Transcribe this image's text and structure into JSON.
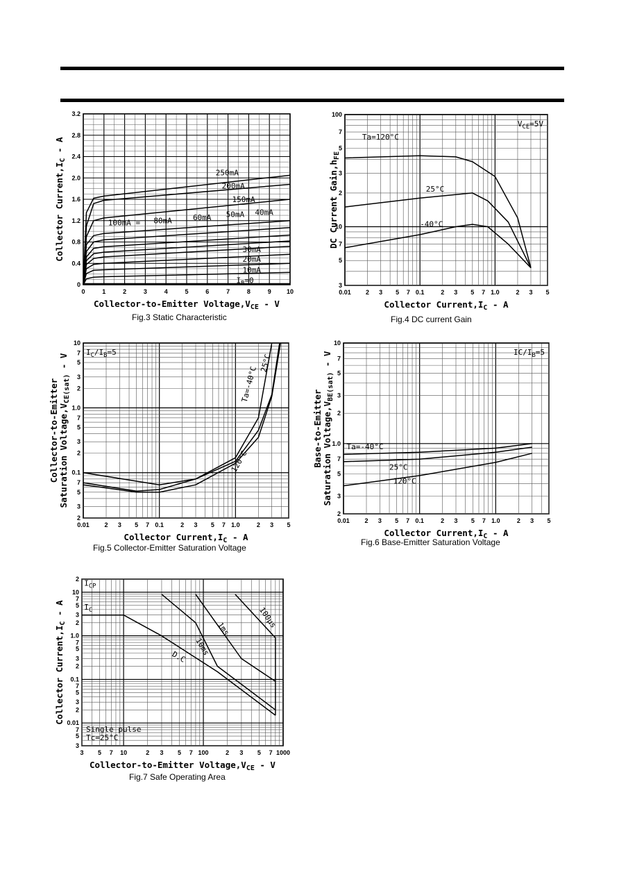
{
  "chart_data": [
    {
      "id": "fig3",
      "type": "line",
      "caption": "Fig.3 Static Characteristic",
      "xlabel": "Collector-to-Emitter Voltage,V",
      "xlabel_sub": "CE",
      "xlabel_tail": " - V",
      "ylabel": "Collector Current,I",
      "ylabel_sub": "C",
      "ylabel_tail": " - A",
      "xlim": [
        0,
        10
      ],
      "ylim": [
        0,
        3.2
      ],
      "xticks": [
        0,
        1,
        2,
        3,
        4,
        5,
        6,
        7,
        8,
        9,
        10
      ],
      "yticks": [
        0,
        0.4,
        0.8,
        1.2,
        1.6,
        2.0,
        2.4,
        2.8,
        3.2
      ],
      "ytick_labels": [
        "0",
        "0.4",
        "0.8",
        "1.2",
        "1.6",
        "2.0",
        "2.4",
        "2.8",
        "3.2"
      ],
      "grid": true,
      "series": [
        {
          "name": "250mA",
          "points": [
            [
              0,
              0
            ],
            [
              0.15,
              1.35
            ],
            [
              0.5,
              1.62
            ],
            [
              1,
              1.66
            ],
            [
              10,
              2.05
            ]
          ]
        },
        {
          "name": "200mA",
          "points": [
            [
              0,
              0
            ],
            [
              0.15,
              1.1
            ],
            [
              0.5,
              1.52
            ],
            [
              1,
              1.58
            ],
            [
              10,
              1.88
            ]
          ]
        },
        {
          "name": "150mA",
          "points": [
            [
              0,
              0
            ],
            [
              0.15,
              0.9
            ],
            [
              0.5,
              1.2
            ],
            [
              1,
              1.25
            ],
            [
              10,
              1.6
            ]
          ]
        },
        {
          "name": "100mA",
          "points": [
            [
              0,
              0
            ],
            [
              0.15,
              0.75
            ],
            [
              0.5,
              0.92
            ],
            [
              1,
              0.96
            ],
            [
              10,
              1.2
            ]
          ]
        },
        {
          "name": "80mA",
          "points": [
            [
              0,
              0
            ],
            [
              0.15,
              0.62
            ],
            [
              0.5,
              0.8
            ],
            [
              1,
              0.84
            ],
            [
              10,
              1.07
            ]
          ]
        },
        {
          "name": "60mA",
          "points": [
            [
              0,
              0
            ],
            [
              0.15,
              0.52
            ],
            [
              0.5,
              0.68
            ],
            [
              1,
              0.71
            ],
            [
              10,
              0.93
            ]
          ]
        },
        {
          "name": "50mA",
          "points": [
            [
              0,
              0
            ],
            [
              0.15,
              0.45
            ],
            [
              0.5,
              0.58
            ],
            [
              1,
              0.61
            ],
            [
              10,
              0.82
            ]
          ]
        },
        {
          "name": "40mA",
          "points": [
            [
              0,
              0
            ],
            [
              0.15,
              0.38
            ],
            [
              0.5,
              0.49
            ],
            [
              1,
              0.52
            ],
            [
              10,
              0.72
            ]
          ]
        },
        {
          "name": "30mA",
          "points": [
            [
              0,
              0
            ],
            [
              0.15,
              0.3
            ],
            [
              0.5,
              0.38
            ],
            [
              1,
              0.4
            ],
            [
              10,
              0.57
            ]
          ]
        },
        {
          "name": "20mA",
          "points": [
            [
              0,
              0
            ],
            [
              0.15,
              0.21
            ],
            [
              0.5,
              0.27
            ],
            [
              1,
              0.28
            ],
            [
              10,
              0.4
            ]
          ]
        },
        {
          "name": "10mA",
          "points": [
            [
              0,
              0
            ],
            [
              0.15,
              0.11
            ],
            [
              0.5,
              0.14
            ],
            [
              1,
              0.15
            ],
            [
              10,
              0.23
            ]
          ]
        },
        {
          "name": "I_B=0",
          "points": [
            [
              0,
              0.02
            ],
            [
              10,
              0.02
            ]
          ]
        }
      ],
      "labels": [
        {
          "text": "250mA",
          "x": 6.4,
          "y": 2.05
        },
        {
          "text": "200mA",
          "x": 6.7,
          "y": 1.8
        },
        {
          "text": "150mA",
          "x": 7.2,
          "y": 1.55
        },
        {
          "text": "100mA =",
          "x": 1.2,
          "y": 1.11
        },
        {
          "text": "80mA",
          "x": 3.4,
          "y": 1.15
        },
        {
          "text": "60mA",
          "x": 5.3,
          "y": 1.21
        },
        {
          "text": "50mA",
          "x": 6.9,
          "y": 1.27
        },
        {
          "text": "40mA",
          "x": 8.3,
          "y": 1.31
        },
        {
          "text": "30mA",
          "x": 7.7,
          "y": 0.61
        },
        {
          "text": "20mA",
          "x": 7.7,
          "y": 0.43
        },
        {
          "text": "10mA",
          "x": 7.7,
          "y": 0.23
        },
        {
          "text": "I",
          "sub": "B",
          "tail": "=0",
          "x": 7.4,
          "y": 0.03
        }
      ]
    },
    {
      "id": "fig4",
      "type": "line",
      "caption": "Fig.4  DC current Gain",
      "xlabel": "Collector Current,I",
      "xlabel_sub": "C",
      "xlabel_tail": " - A",
      "ylabel": "DC Current Gain,h",
      "ylabel_sub": "FE",
      "ylabel_tail": "",
      "xscale": "log",
      "yscale": "log",
      "xlim": [
        0.01,
        5
      ],
      "ylim": [
        3,
        100
      ],
      "grid": true,
      "annotation": {
        "text": "V",
        "sub": "CE",
        "tail": "=5V"
      },
      "series": [
        {
          "name": "Ta=120°C",
          "points": [
            [
              0.01,
              41
            ],
            [
              0.1,
              43
            ],
            [
              0.3,
              42
            ],
            [
              0.5,
              38
            ],
            [
              1,
              28
            ],
            [
              2,
              12
            ],
            [
              3,
              4.3
            ]
          ]
        },
        {
          "name": "25°C",
          "points": [
            [
              0.01,
              15
            ],
            [
              0.1,
              18
            ],
            [
              0.5,
              20
            ],
            [
              0.8,
              17
            ],
            [
              1.5,
              11
            ],
            [
              3,
              4.3
            ]
          ]
        },
        {
          "name": "-40°C",
          "points": [
            [
              0.01,
              6.5
            ],
            [
              0.1,
              8.5
            ],
            [
              0.3,
              10
            ],
            [
              0.5,
              10.5
            ],
            [
              0.8,
              10
            ],
            [
              1.5,
              7
            ],
            [
              3,
              4.3
            ]
          ]
        }
      ],
      "labels": [
        {
          "text": "Ta=120°C",
          "x": 0.017,
          "y": 60
        },
        {
          "text": "25°C",
          "x": 0.12,
          "y": 20.5
        },
        {
          "text": "-40°C",
          "x": 0.1,
          "y": 10
        }
      ]
    },
    {
      "id": "fig5",
      "type": "line",
      "caption": "Fig.5 Collector-Emitter Saturation Voltage",
      "xlabel": "Collector Current,I",
      "xlabel_sub": "C",
      "xlabel_tail": " - A",
      "ylabel": "Collector-to-Emitter",
      "ylabel2": "Saturation Voltage,V",
      "ylabel_sub": "CE(sat)",
      "ylabel_tail": " - V",
      "xscale": "log",
      "yscale": "log",
      "xlim": [
        0.01,
        5
      ],
      "ylim": [
        0.02,
        10
      ],
      "grid": true,
      "annotation": {
        "text": "I",
        "sub": "C",
        "tail": "/I",
        "sub2": "B",
        "tail2": "=5"
      },
      "series": [
        {
          "name": "-40°C",
          "points": [
            [
              0.01,
              0.1
            ],
            [
              0.1,
              0.065
            ],
            [
              0.3,
              0.08
            ],
            [
              1,
              0.17
            ],
            [
              2,
              0.7
            ],
            [
              3,
              10
            ]
          ]
        },
        {
          "name": "25°C",
          "points": [
            [
              0.01,
              0.07
            ],
            [
              0.05,
              0.052
            ],
            [
              0.1,
              0.055
            ],
            [
              0.3,
              0.08
            ],
            [
              1,
              0.15
            ],
            [
              2,
              0.45
            ],
            [
              3,
              1.6
            ],
            [
              3.8,
              10
            ]
          ]
        },
        {
          "name": "120°C",
          "points": [
            [
              0.01,
              0.065
            ],
            [
              0.05,
              0.05
            ],
            [
              0.1,
              0.05
            ],
            [
              0.3,
              0.065
            ],
            [
              1,
              0.14
            ],
            [
              2,
              0.35
            ],
            [
              3,
              1.5
            ],
            [
              3.9,
              10
            ]
          ]
        }
      ],
      "labels": [
        {
          "text": "Ta=-40°C",
          "x": 1.4,
          "y": 1.2,
          "rotate": -75
        },
        {
          "text": "25°C",
          "x": 2.5,
          "y": 3.5,
          "rotate": -75
        },
        {
          "text": "120°C",
          "x": 1.0,
          "y": 0.1,
          "rotate": -60
        }
      ]
    },
    {
      "id": "fig6",
      "type": "line",
      "caption": "Fig.6  Base-Emitter Saturation Voltage",
      "xlabel": "Collector Current,I",
      "xlabel_sub": "C",
      "xlabel_tail": " - A",
      "ylabel": "Base-to-Emitter",
      "ylabel2": "Saturation Voltage,V",
      "ylabel_sub": "BE(sat)",
      "ylabel_tail": " - V",
      "xscale": "log",
      "yscale": "log",
      "xlim": [
        0.01,
        5
      ],
      "ylim": [
        0.2,
        10
      ],
      "grid": true,
      "annotation": {
        "text": "IC/I",
        "sub": "B",
        "tail": "=5"
      },
      "series": [
        {
          "name": "Ta=-40°C",
          "points": [
            [
              0.01,
              0.78
            ],
            [
              0.1,
              0.82
            ],
            [
              1,
              0.9
            ],
            [
              3,
              1.0
            ]
          ]
        },
        {
          "name": "25°C",
          "points": [
            [
              0.01,
              0.66
            ],
            [
              0.1,
              0.7
            ],
            [
              1,
              0.82
            ],
            [
              3,
              0.92
            ]
          ]
        },
        {
          "name": "120°C",
          "points": [
            [
              0.01,
              0.38
            ],
            [
              0.1,
              0.48
            ],
            [
              1,
              0.65
            ],
            [
              3,
              0.8
            ]
          ]
        }
      ],
      "labels": [
        {
          "text": "Ta=-40°C",
          "x": 0.011,
          "y": 0.88
        },
        {
          "text": "25°C",
          "x": 0.04,
          "y": 0.55
        },
        {
          "text": "120°C",
          "x": 0.045,
          "y": 0.4
        }
      ]
    },
    {
      "id": "fig7",
      "type": "line",
      "caption": "Fig.7 Safe Operating Area",
      "xlabel": "Collector-to-Emitter Voltage,V",
      "xlabel_sub": "CE",
      "xlabel_tail": " - V",
      "ylabel": "Collector Current,I",
      "ylabel_sub": "C",
      "ylabel_tail": " - A",
      "xscale": "log",
      "yscale": "log",
      "xlim": [
        3,
        1000
      ],
      "ylim": [
        0.003,
        20
      ],
      "grid": true,
      "notes": [
        "Single pulse",
        "Tc=25°C"
      ],
      "series": [
        {
          "name": "D.C",
          "points": [
            [
              3,
              3
            ],
            [
              10,
              3
            ],
            [
              30,
              1
            ],
            [
              150,
              0.15
            ],
            [
              800,
              0.015
            ]
          ]
        },
        {
          "name": "10ms",
          "points": [
            [
              30,
              9
            ],
            [
              80,
              2
            ],
            [
              150,
              0.2
            ],
            [
              800,
              0.02
            ]
          ]
        },
        {
          "name": "1ms",
          "points": [
            [
              80,
              9
            ],
            [
              300,
              0.3
            ],
            [
              800,
              0.09
            ]
          ]
        },
        {
          "name": "100μs",
          "points": [
            [
              250,
              9
            ],
            [
              800,
              0.9
            ],
            [
              800,
              0.015
            ]
          ]
        }
      ],
      "labels": [
        {
          "text": "I",
          "sub": "CP",
          "x": 3.2,
          "y": 14
        },
        {
          "text": "I",
          "sub": "C",
          "x": 3.2,
          "y": 4
        },
        {
          "text": "D.C",
          "x": 40,
          "y": 0.35,
          "rotate": 30
        },
        {
          "text": "10ms",
          "x": 80,
          "y": 0.8,
          "rotate": 60
        },
        {
          "text": "1ms",
          "x": 150,
          "y": 1.8,
          "rotate": 55
        },
        {
          "text": "100μs",
          "x": 500,
          "y": 4,
          "rotate": 55
        }
      ]
    }
  ]
}
